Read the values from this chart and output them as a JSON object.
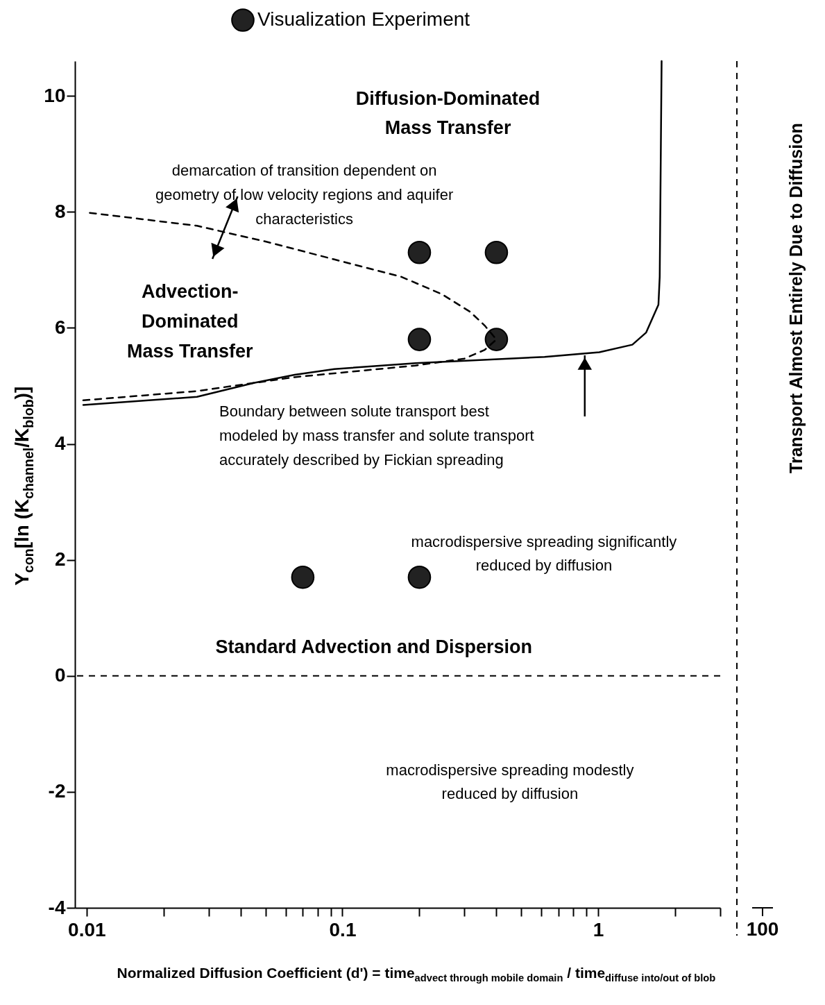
{
  "chart_data": [
    {
      "type": "scatter",
      "xlabel": "Normalized Diffusion Coefficient (d') = time$_{advect through mobile domain}$ / time$_{diffuse into/out of blob}$",
      "ylabel": "Y$_{con}$[ln (K$_{channel}$/K$_{blob}$)]",
      "log": "x",
      "xlim": [
        0.009,
        3
      ],
      "xticks": [
        0.01,
        {
          "value": 0.02,
          "label": null
        },
        {
          "value": 0.03,
          "label": null
        },
        {
          "value": 0.04,
          "label": null
        },
        {
          "value": 0.05,
          "label": null
        },
        {
          "value": 0.06,
          "label": null
        },
        {
          "value": 0.07,
          "label": null
        },
        {
          "value": 0.08,
          "label": null
        },
        {
          "value": 0.09,
          "label": null
        },
        0.1,
        {
          "value": 0.2,
          "label": null
        },
        {
          "value": 0.3,
          "label": null
        },
        {
          "value": 0.4,
          "label": null
        },
        {
          "value": 0.5,
          "label": null
        },
        {
          "value": 0.6,
          "label": null
        },
        {
          "value": 0.7,
          "label": null
        },
        {
          "value": 0.8,
          "label": null
        },
        {
          "value": 0.9,
          "label": null
        },
        1,
        {
          "value": 2,
          "label": null
        },
        {
          "value": 3,
          "label": null
        }
      ],
      "ylim": [
        -4,
        10.6
      ],
      "yticks": [
        -4,
        -2,
        0,
        2,
        4,
        6,
        8,
        10
      ],
      "legend": "top",
      "series": [
        {
          "name": "Visualization Experiment",
          "color": "#222222",
          "marker": "circle",
          "x": [
            0.2,
            0.4,
            0.2,
            0.4,
            0.07,
            0.2
          ],
          "values": [
            7.3,
            7.3,
            5.8,
            5.8,
            1.7,
            1.7
          ]
        },
        {
          "type": "line",
          "color": "#000000",
          "x": [
            0.0097,
            0.027,
            0.045,
            0.065,
            0.093,
            0.193,
            0.617,
            1.01,
            1.36,
            1.54,
            1.72,
            1.74,
            1.77
          ],
          "values": [
            4.67,
            4.81,
            5.05,
            5.19,
            5.29,
            5.39,
            5.5,
            5.58,
            5.71,
            5.92,
            6.4,
            6.88,
            10.6
          ]
        },
        {
          "type": "line",
          "color": "#000000",
          "line_style": "dashed",
          "x": [
            0.0097,
            0.027,
            0.065,
            0.193,
            0.3,
            0.36,
            0.4,
            0.36,
            0.315,
            0.245,
            0.17,
            0.093,
            0.051,
            0.027,
            0.01
          ],
          "values": [
            4.75,
            4.91,
            5.15,
            5.35,
            5.47,
            5.62,
            5.8,
            6.04,
            6.28,
            6.58,
            6.88,
            7.18,
            7.48,
            7.76,
            7.99
          ]
        }
      ],
      "ref_lines": [
        {
          "axis": "y",
          "value": 0,
          "line_style": "dashed"
        }
      ],
      "annotations": [
        "Diffusion-Dominated\nMass Transfer",
        "Advection-\nDominated\nMass Transfer",
        "Standard Advection and Dispersion",
        "macrodispersive spreading significantly\nreduced by diffusion",
        "macrodispersive spreading modestly\nreduced by diffusion",
        "demarcation of transition dependent on\ngeometry of low velocity regions and aquifer\ncharacteristics",
        "Boundary between solute transport best\nmodeled by mass transfer and solute transport\naccurately described by Fickian spreading"
      ]
    },
    {
      "type": "other",
      "annotations": [
        "100",
        "Transport Almost Entirely Due to Diffusion"
      ]
    }
  ]
}
